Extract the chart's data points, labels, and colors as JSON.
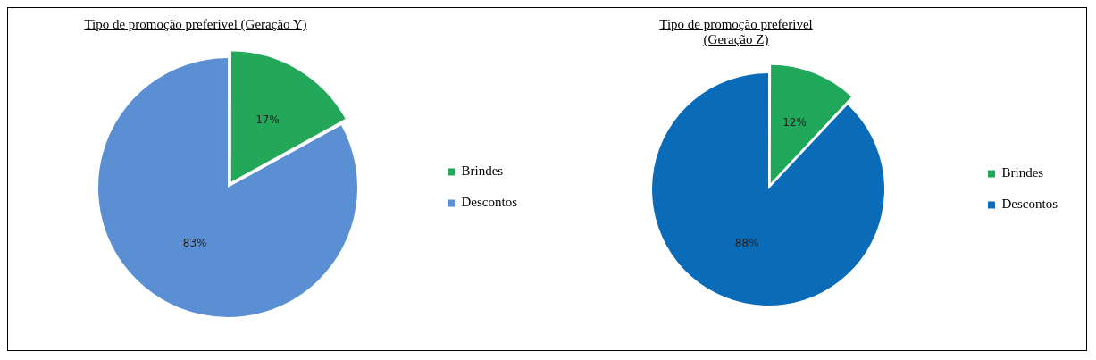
{
  "chart_data": [
    {
      "type": "pie",
      "title": "Tipo de promoção preferivel (Geração Y)",
      "categories": [
        "Brindes",
        "Descontos"
      ],
      "values": [
        17,
        83
      ],
      "colors": [
        "#23a85a",
        "#5b8fd4"
      ],
      "value_labels": [
        "17%",
        "83%"
      ],
      "legend": "right"
    },
    {
      "type": "pie",
      "title": "Tipo de promoção preferivel (Geração Z)",
      "categories": [
        "Brindes",
        "Descontos"
      ],
      "values": [
        12,
        88
      ],
      "colors": [
        "#1fa85a",
        "#0a6bb8"
      ],
      "value_labels": [
        "12%",
        "88%"
      ],
      "legend": "right"
    }
  ]
}
